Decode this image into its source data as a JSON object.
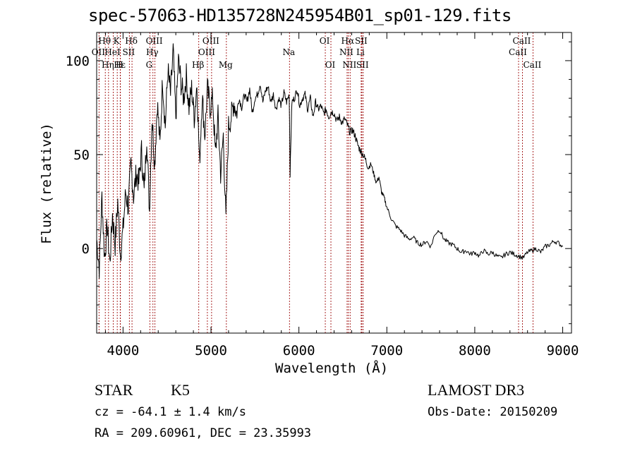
{
  "chart_data": {
    "type": "line",
    "title": "spec-57063-HD135728N245954B01_sp01-129.fits",
    "xlabel": "Wavelength (Å)",
    "ylabel": "Flux (relative)",
    "xlim": [
      3700,
      9100
    ],
    "ylim": [
      -45,
      115
    ],
    "xticks": [
      4000,
      5000,
      6000,
      7000,
      8000,
      9000
    ],
    "yticks": [
      0,
      50,
      100
    ],
    "series": [
      {
        "name": "flux",
        "x": [
          3700,
          3730,
          3760,
          3790,
          3820,
          3850,
          3880,
          3910,
          3940,
          3970,
          4000,
          4030,
          4060,
          4090,
          4120,
          4150,
          4180,
          4210,
          4240,
          4270,
          4300,
          4330,
          4360,
          4390,
          4420,
          4450,
          4480,
          4510,
          4540,
          4570,
          4600,
          4630,
          4660,
          4690,
          4720,
          4750,
          4780,
          4810,
          4840,
          4870,
          4900,
          4930,
          4960,
          4990,
          5020,
          5050,
          5080,
          5110,
          5140,
          5170,
          5200,
          5230,
          5260,
          5290,
          5320,
          5350,
          5380,
          5410,
          5440,
          5470,
          5500,
          5530,
          5560,
          5590,
          5620,
          5650,
          5680,
          5710,
          5740,
          5770,
          5800,
          5830,
          5860,
          5890,
          5900,
          5920,
          5950,
          5980,
          6010,
          6040,
          6070,
          6100,
          6130,
          6160,
          6190,
          6220,
          6250,
          6280,
          6310,
          6340,
          6370,
          6400,
          6430,
          6460,
          6490,
          6520,
          6550,
          6580,
          6610,
          6640,
          6670,
          6700,
          6730,
          6760,
          6790,
          6820,
          6850,
          6880,
          6910,
          6940,
          6970,
          7000,
          7050,
          7100,
          7150,
          7200,
          7250,
          7300,
          7350,
          7400,
          7450,
          7500,
          7550,
          7600,
          7650,
          7700,
          7750,
          7800,
          7850,
          7900,
          7950,
          8000,
          8050,
          8100,
          8150,
          8200,
          8250,
          8300,
          8350,
          8400,
          8450,
          8500,
          8550,
          8600,
          8650,
          8700,
          8750,
          8800,
          8850,
          8900,
          8950,
          9000
        ],
        "y": [
          5,
          -10,
          28,
          -5,
          12,
          -8,
          18,
          2,
          25,
          -3,
          10,
          30,
          22,
          45,
          28,
          40,
          35,
          52,
          30,
          60,
          20,
          70,
          45,
          78,
          55,
          90,
          65,
          95,
          82,
          105,
          70,
          100,
          88,
          80,
          92,
          75,
          85,
          70,
          88,
          45,
          82,
          60,
          85,
          75,
          80,
          50,
          70,
          40,
          60,
          15,
          65,
          70,
          78,
          72,
          80,
          75,
          82,
          78,
          85,
          72,
          80,
          82,
          88,
          78,
          84,
          86,
          78,
          82,
          74,
          80,
          76,
          83,
          78,
          82,
          40,
          78,
          80,
          85,
          76,
          80,
          82,
          74,
          80,
          70,
          78,
          74,
          76,
          72,
          74,
          70,
          73,
          72,
          68,
          70,
          67,
          69,
          66,
          62,
          63,
          60,
          55,
          52,
          50,
          47,
          43,
          45,
          40,
          35,
          38,
          30,
          27,
          22,
          16,
          12,
          10,
          7,
          5,
          6,
          3,
          2,
          4,
          1,
          8,
          10,
          5,
          3,
          2,
          0,
          -2,
          -1,
          -3,
          -2,
          -4,
          -1,
          -3,
          -2,
          -4,
          -5,
          -3,
          -2,
          -3,
          -4,
          -5,
          -2,
          -1,
          0,
          -2,
          1,
          2,
          4,
          3,
          1
        ]
      }
    ],
    "line_marks": [
      {
        "label": "Hθ",
        "x": 3798,
        "row": 1
      },
      {
        "label": "OII",
        "x": 3727,
        "row": 2
      },
      {
        "label": "Hη",
        "x": 3835,
        "row": 3
      },
      {
        "label": "K",
        "x": 3934,
        "row": 1
      },
      {
        "label": "HeI",
        "x": 3889,
        "row": 2
      },
      {
        "label": "Hε",
        "x": 3970,
        "row": 3
      },
      {
        "label": "H",
        "x": 3968,
        "row": 3
      },
      {
        "label": "Hδ",
        "x": 4102,
        "row": 1
      },
      {
        "label": "SII",
        "x": 4072,
        "row": 2
      },
      {
        "label": "OIII",
        "x": 4363,
        "row": 1
      },
      {
        "label": "Hγ",
        "x": 4340,
        "row": 2
      },
      {
        "label": "G",
        "x": 4305,
        "row": 3
      },
      {
        "label": "Hβ",
        "x": 4861,
        "row": 3
      },
      {
        "label": "OIII",
        "x": 5007,
        "row": 1
      },
      {
        "label": "OIII",
        "x": 4959,
        "row": 2
      },
      {
        "label": "Mg",
        "x": 5175,
        "row": 3
      },
      {
        "label": "Na",
        "x": 5893,
        "row": 2
      },
      {
        "label": "OI",
        "x": 6300,
        "row": 1
      },
      {
        "label": "OI",
        "x": 6364,
        "row": 3
      },
      {
        "label": "Hα",
        "x": 6563,
        "row": 1
      },
      {
        "label": "NII",
        "x": 6548,
        "row": 2
      },
      {
        "label": "NII",
        "x": 6583,
        "row": 3
      },
      {
        "label": "SII",
        "x": 6716,
        "row": 1
      },
      {
        "label": "Li",
        "x": 6708,
        "row": 2
      },
      {
        "label": "SII",
        "x": 6731,
        "row": 3
      },
      {
        "label": "CaII",
        "x": 8542,
        "row": 1
      },
      {
        "label": "CaII",
        "x": 8498,
        "row": 2
      },
      {
        "label": "CaII",
        "x": 8662,
        "row": 3
      }
    ]
  },
  "info": {
    "class_label": "STAR",
    "subclass": "K5",
    "survey": "LAMOST DR3",
    "cz": "cz = -64.1 ± 1.4 km/s",
    "obs_date": "Obs-Date: 20150209",
    "coords": "RA = 209.60961, DEC =  23.35993"
  }
}
